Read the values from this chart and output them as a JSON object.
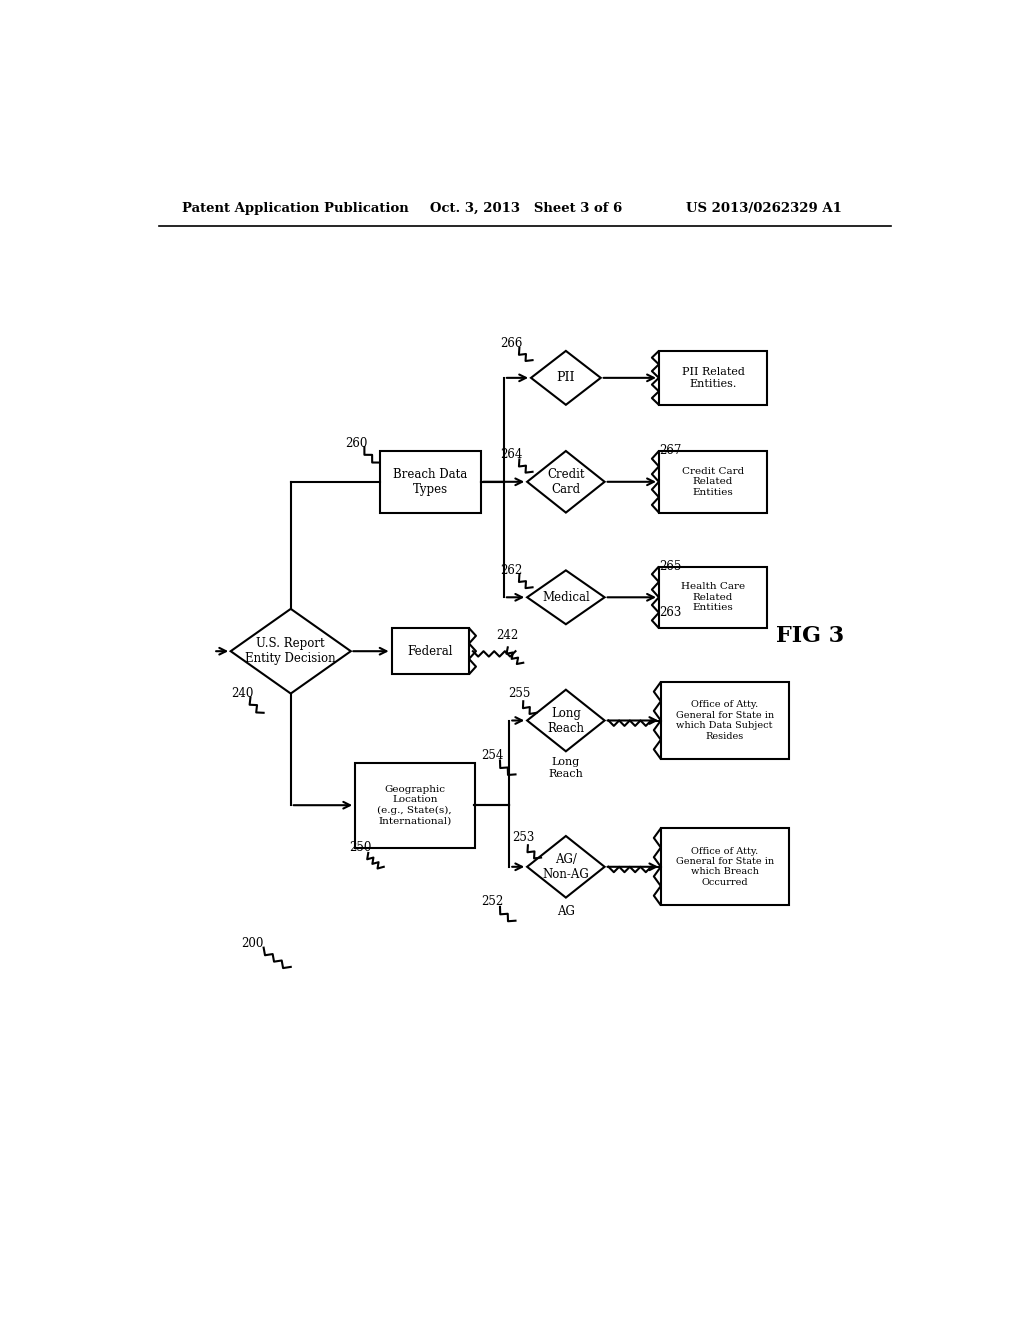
{
  "bg_color": "#ffffff",
  "header_left": "Patent Application Publication",
  "header_mid": "Oct. 3, 2013   Sheet 3 of 6",
  "header_right": "US 2013/0262329 A1",
  "fig_label": "FIG 3"
}
